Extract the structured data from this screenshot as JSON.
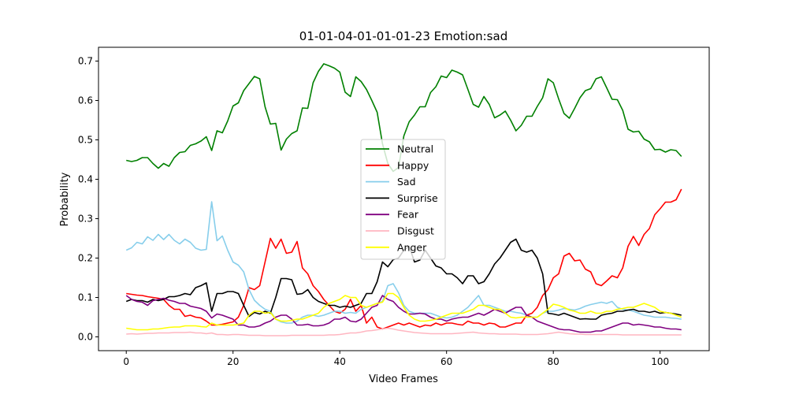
{
  "chart_data": {
    "type": "line",
    "title": "01-01-04-01-01-01-23 Emotion:sad",
    "xlabel": "Video Frames",
    "ylabel": "Probability",
    "xlim": [
      -5.2,
      109.2
    ],
    "ylim": [
      -0.035,
      0.735
    ],
    "xticks": [
      0,
      20,
      40,
      60,
      80,
      100
    ],
    "yticks": [
      0.0,
      0.1,
      0.2,
      0.3,
      0.4,
      0.5,
      0.6,
      0.7
    ],
    "grid": false,
    "legend_position": "center",
    "x": [
      0,
      1,
      2,
      3,
      4,
      5,
      6,
      7,
      8,
      9,
      10,
      11,
      12,
      13,
      14,
      15,
      16,
      17,
      18,
      19,
      20,
      21,
      22,
      23,
      24,
      25,
      26,
      27,
      28,
      29,
      30,
      31,
      32,
      33,
      34,
      35,
      36,
      37,
      38,
      39,
      40,
      41,
      42,
      43,
      44,
      45,
      46,
      47,
      48,
      49,
      50,
      51,
      52,
      53,
      54,
      55,
      56,
      57,
      58,
      59,
      60,
      61,
      62,
      63,
      64,
      65,
      66,
      67,
      68,
      69,
      70,
      71,
      72,
      73,
      74,
      75,
      76,
      77,
      78,
      79,
      80,
      81,
      82,
      83,
      84,
      85,
      86,
      87,
      88,
      89,
      90,
      91,
      92,
      93,
      94,
      95,
      96,
      97,
      98,
      99,
      100,
      101,
      102,
      103,
      104
    ],
    "series": [
      {
        "name": "Neutral",
        "color": "#008000",
        "values": [
          0.448,
          0.445,
          0.448,
          0.455,
          0.455,
          0.44,
          0.428,
          0.44,
          0.433,
          0.455,
          0.468,
          0.47,
          0.486,
          0.49,
          0.497,
          0.508,
          0.473,
          0.523,
          0.518,
          0.548,
          0.586,
          0.594,
          0.625,
          0.643,
          0.661,
          0.655,
          0.584,
          0.54,
          0.542,
          0.474,
          0.502,
          0.516,
          0.523,
          0.581,
          0.58,
          0.645,
          0.674,
          0.693,
          0.688,
          0.682,
          0.672,
          0.621,
          0.61,
          0.66,
          0.648,
          0.628,
          0.6,
          0.57,
          0.49,
          0.44,
          0.42,
          0.43,
          0.51,
          0.546,
          0.563,
          0.584,
          0.584,
          0.62,
          0.635,
          0.662,
          0.658,
          0.677,
          0.672,
          0.665,
          0.628,
          0.59,
          0.583,
          0.61,
          0.59,
          0.556,
          0.563,
          0.573,
          0.55,
          0.523,
          0.537,
          0.56,
          0.56,
          0.585,
          0.607,
          0.655,
          0.645,
          0.604,
          0.567,
          0.555,
          0.58,
          0.607,
          0.625,
          0.63,
          0.655,
          0.66,
          0.632,
          0.603,
          0.602,
          0.575,
          0.527,
          0.52,
          0.522,
          0.502,
          0.495,
          0.475,
          0.476,
          0.469,
          0.475,
          0.473,
          0.458
        ]
      },
      {
        "name": "Happy",
        "color": "#ff0000",
        "values": [
          0.11,
          0.108,
          0.106,
          0.105,
          0.102,
          0.1,
          0.098,
          0.095,
          0.08,
          0.07,
          0.07,
          0.052,
          0.055,
          0.05,
          0.048,
          0.04,
          0.03,
          0.03,
          0.032,
          0.035,
          0.038,
          0.05,
          0.08,
          0.125,
          0.12,
          0.13,
          0.19,
          0.25,
          0.225,
          0.248,
          0.212,
          0.215,
          0.242,
          0.175,
          0.16,
          0.13,
          0.115,
          0.095,
          0.08,
          0.065,
          0.06,
          0.07,
          0.095,
          0.065,
          0.08,
          0.035,
          0.05,
          0.025,
          0.02,
          0.025,
          0.03,
          0.035,
          0.03,
          0.035,
          0.03,
          0.025,
          0.03,
          0.028,
          0.035,
          0.03,
          0.035,
          0.035,
          0.032,
          0.03,
          0.04,
          0.035,
          0.035,
          0.03,
          0.035,
          0.033,
          0.025,
          0.025,
          0.03,
          0.035,
          0.035,
          0.055,
          0.06,
          0.075,
          0.105,
          0.12,
          0.15,
          0.16,
          0.205,
          0.212,
          0.193,
          0.195,
          0.172,
          0.165,
          0.135,
          0.13,
          0.142,
          0.155,
          0.15,
          0.175,
          0.23,
          0.255,
          0.232,
          0.26,
          0.275,
          0.31,
          0.325,
          0.342,
          0.342,
          0.348,
          0.375
        ]
      },
      {
        "name": "Sad",
        "color": "#87ceeb",
        "values": [
          0.22,
          0.226,
          0.24,
          0.236,
          0.254,
          0.245,
          0.26,
          0.247,
          0.26,
          0.245,
          0.236,
          0.248,
          0.24,
          0.225,
          0.22,
          0.222,
          0.343,
          0.244,
          0.256,
          0.22,
          0.19,
          0.182,
          0.165,
          0.12,
          0.093,
          0.08,
          0.07,
          0.065,
          0.045,
          0.038,
          0.035,
          0.035,
          0.04,
          0.05,
          0.055,
          0.055,
          0.052,
          0.055,
          0.06,
          0.065,
          0.065,
          0.06,
          0.062,
          0.06,
          0.07,
          0.075,
          0.08,
          0.085,
          0.09,
          0.13,
          0.135,
          0.112,
          0.08,
          0.065,
          0.06,
          0.06,
          0.06,
          0.06,
          0.055,
          0.05,
          0.048,
          0.05,
          0.055,
          0.065,
          0.075,
          0.09,
          0.105,
          0.08,
          0.08,
          0.075,
          0.07,
          0.065,
          0.065,
          0.062,
          0.06,
          0.055,
          0.05,
          0.05,
          0.06,
          0.065,
          0.065,
          0.068,
          0.072,
          0.07,
          0.068,
          0.072,
          0.078,
          0.082,
          0.085,
          0.088,
          0.085,
          0.09,
          0.075,
          0.07,
          0.068,
          0.065,
          0.06,
          0.055,
          0.053,
          0.05,
          0.05,
          0.05,
          0.048,
          0.047,
          0.045
        ]
      },
      {
        "name": "Surprise",
        "color": "#000000",
        "values": [
          0.09,
          0.095,
          0.092,
          0.092,
          0.088,
          0.095,
          0.092,
          0.095,
          0.102,
          0.102,
          0.105,
          0.11,
          0.107,
          0.125,
          0.13,
          0.137,
          0.065,
          0.11,
          0.11,
          0.115,
          0.115,
          0.11,
          0.08,
          0.052,
          0.062,
          0.058,
          0.065,
          0.06,
          0.1,
          0.148,
          0.148,
          0.145,
          0.108,
          0.11,
          0.12,
          0.1,
          0.09,
          0.085,
          0.08,
          0.08,
          0.075,
          0.078,
          0.075,
          0.08,
          0.085,
          0.11,
          0.11,
          0.14,
          0.19,
          0.178,
          0.196,
          0.2,
          0.22,
          0.23,
          0.19,
          0.195,
          0.22,
          0.2,
          0.18,
          0.175,
          0.16,
          0.16,
          0.15,
          0.135,
          0.155,
          0.155,
          0.135,
          0.14,
          0.16,
          0.185,
          0.2,
          0.22,
          0.24,
          0.248,
          0.22,
          0.215,
          0.22,
          0.2,
          0.16,
          0.06,
          0.058,
          0.055,
          0.06,
          0.055,
          0.05,
          0.045,
          0.046,
          0.045,
          0.045,
          0.055,
          0.058,
          0.06,
          0.065,
          0.065,
          0.068,
          0.07,
          0.065,
          0.065,
          0.062,
          0.065,
          0.06,
          0.062,
          0.06,
          0.058,
          0.055
        ]
      },
      {
        "name": "Fear",
        "color": "#800080",
        "values": [
          0.105,
          0.095,
          0.09,
          0.088,
          0.08,
          0.092,
          0.095,
          0.098,
          0.093,
          0.09,
          0.085,
          0.085,
          0.078,
          0.075,
          0.072,
          0.065,
          0.048,
          0.058,
          0.055,
          0.05,
          0.045,
          0.03,
          0.03,
          0.025,
          0.025,
          0.028,
          0.035,
          0.04,
          0.05,
          0.055,
          0.055,
          0.045,
          0.03,
          0.03,
          0.032,
          0.028,
          0.028,
          0.03,
          0.035,
          0.045,
          0.045,
          0.05,
          0.04,
          0.038,
          0.045,
          0.06,
          0.075,
          0.08,
          0.105,
          0.095,
          0.09,
          0.075,
          0.065,
          0.058,
          0.058,
          0.06,
          0.058,
          0.05,
          0.045,
          0.045,
          0.04,
          0.045,
          0.048,
          0.05,
          0.05,
          0.055,
          0.06,
          0.055,
          0.062,
          0.07,
          0.065,
          0.06,
          0.068,
          0.075,
          0.075,
          0.055,
          0.05,
          0.04,
          0.035,
          0.03,
          0.025,
          0.02,
          0.018,
          0.018,
          0.015,
          0.012,
          0.012,
          0.012,
          0.015,
          0.015,
          0.02,
          0.025,
          0.03,
          0.035,
          0.035,
          0.03,
          0.032,
          0.03,
          0.028,
          0.025,
          0.025,
          0.022,
          0.02,
          0.02,
          0.018
        ]
      },
      {
        "name": "Disgust",
        "color": "#ffb6c1",
        "values": [
          0.007,
          0.008,
          0.007,
          0.008,
          0.009,
          0.009,
          0.01,
          0.01,
          0.01,
          0.011,
          0.011,
          0.011,
          0.012,
          0.01,
          0.01,
          0.008,
          0.01,
          0.006,
          0.006,
          0.005,
          0.006,
          0.006,
          0.005,
          0.004,
          0.004,
          0.004,
          0.003,
          0.003,
          0.003,
          0.003,
          0.003,
          0.004,
          0.004,
          0.004,
          0.004,
          0.004,
          0.004,
          0.004,
          0.005,
          0.005,
          0.006,
          0.008,
          0.01,
          0.01,
          0.012,
          0.015,
          0.016,
          0.018,
          0.02,
          0.022,
          0.02,
          0.017,
          0.015,
          0.013,
          0.011,
          0.01,
          0.009,
          0.008,
          0.008,
          0.008,
          0.008,
          0.008,
          0.009,
          0.01,
          0.011,
          0.012,
          0.01,
          0.009,
          0.008,
          0.008,
          0.007,
          0.007,
          0.007,
          0.007,
          0.006,
          0.006,
          0.006,
          0.006,
          0.007,
          0.008,
          0.01,
          0.012,
          0.01,
          0.008,
          0.007,
          0.007,
          0.006,
          0.006,
          0.006,
          0.006,
          0.006,
          0.006,
          0.006,
          0.005,
          0.005,
          0.005,
          0.005,
          0.005,
          0.005,
          0.005,
          0.005,
          0.005,
          0.005,
          0.005,
          0.005
        ]
      },
      {
        "name": "Anger",
        "color": "#ffff00",
        "values": [
          0.022,
          0.02,
          0.018,
          0.018,
          0.018,
          0.02,
          0.02,
          0.022,
          0.024,
          0.025,
          0.025,
          0.028,
          0.028,
          0.028,
          0.026,
          0.025,
          0.035,
          0.03,
          0.03,
          0.03,
          0.03,
          0.032,
          0.035,
          0.055,
          0.065,
          0.065,
          0.06,
          0.062,
          0.045,
          0.04,
          0.04,
          0.042,
          0.045,
          0.045,
          0.05,
          0.055,
          0.06,
          0.075,
          0.085,
          0.09,
          0.095,
          0.105,
          0.1,
          0.1,
          0.08,
          0.075,
          0.08,
          0.085,
          0.088,
          0.11,
          0.11,
          0.1,
          0.075,
          0.055,
          0.045,
          0.04,
          0.04,
          0.042,
          0.045,
          0.05,
          0.055,
          0.06,
          0.06,
          0.06,
          0.065,
          0.07,
          0.08,
          0.08,
          0.075,
          0.07,
          0.07,
          0.06,
          0.05,
          0.048,
          0.05,
          0.05,
          0.05,
          0.05,
          0.06,
          0.07,
          0.083,
          0.08,
          0.075,
          0.068,
          0.065,
          0.06,
          0.06,
          0.065,
          0.06,
          0.06,
          0.065,
          0.065,
          0.07,
          0.072,
          0.075,
          0.075,
          0.08,
          0.085,
          0.08,
          0.075,
          0.065,
          0.062,
          0.06,
          0.055,
          0.05
        ]
      }
    ]
  }
}
